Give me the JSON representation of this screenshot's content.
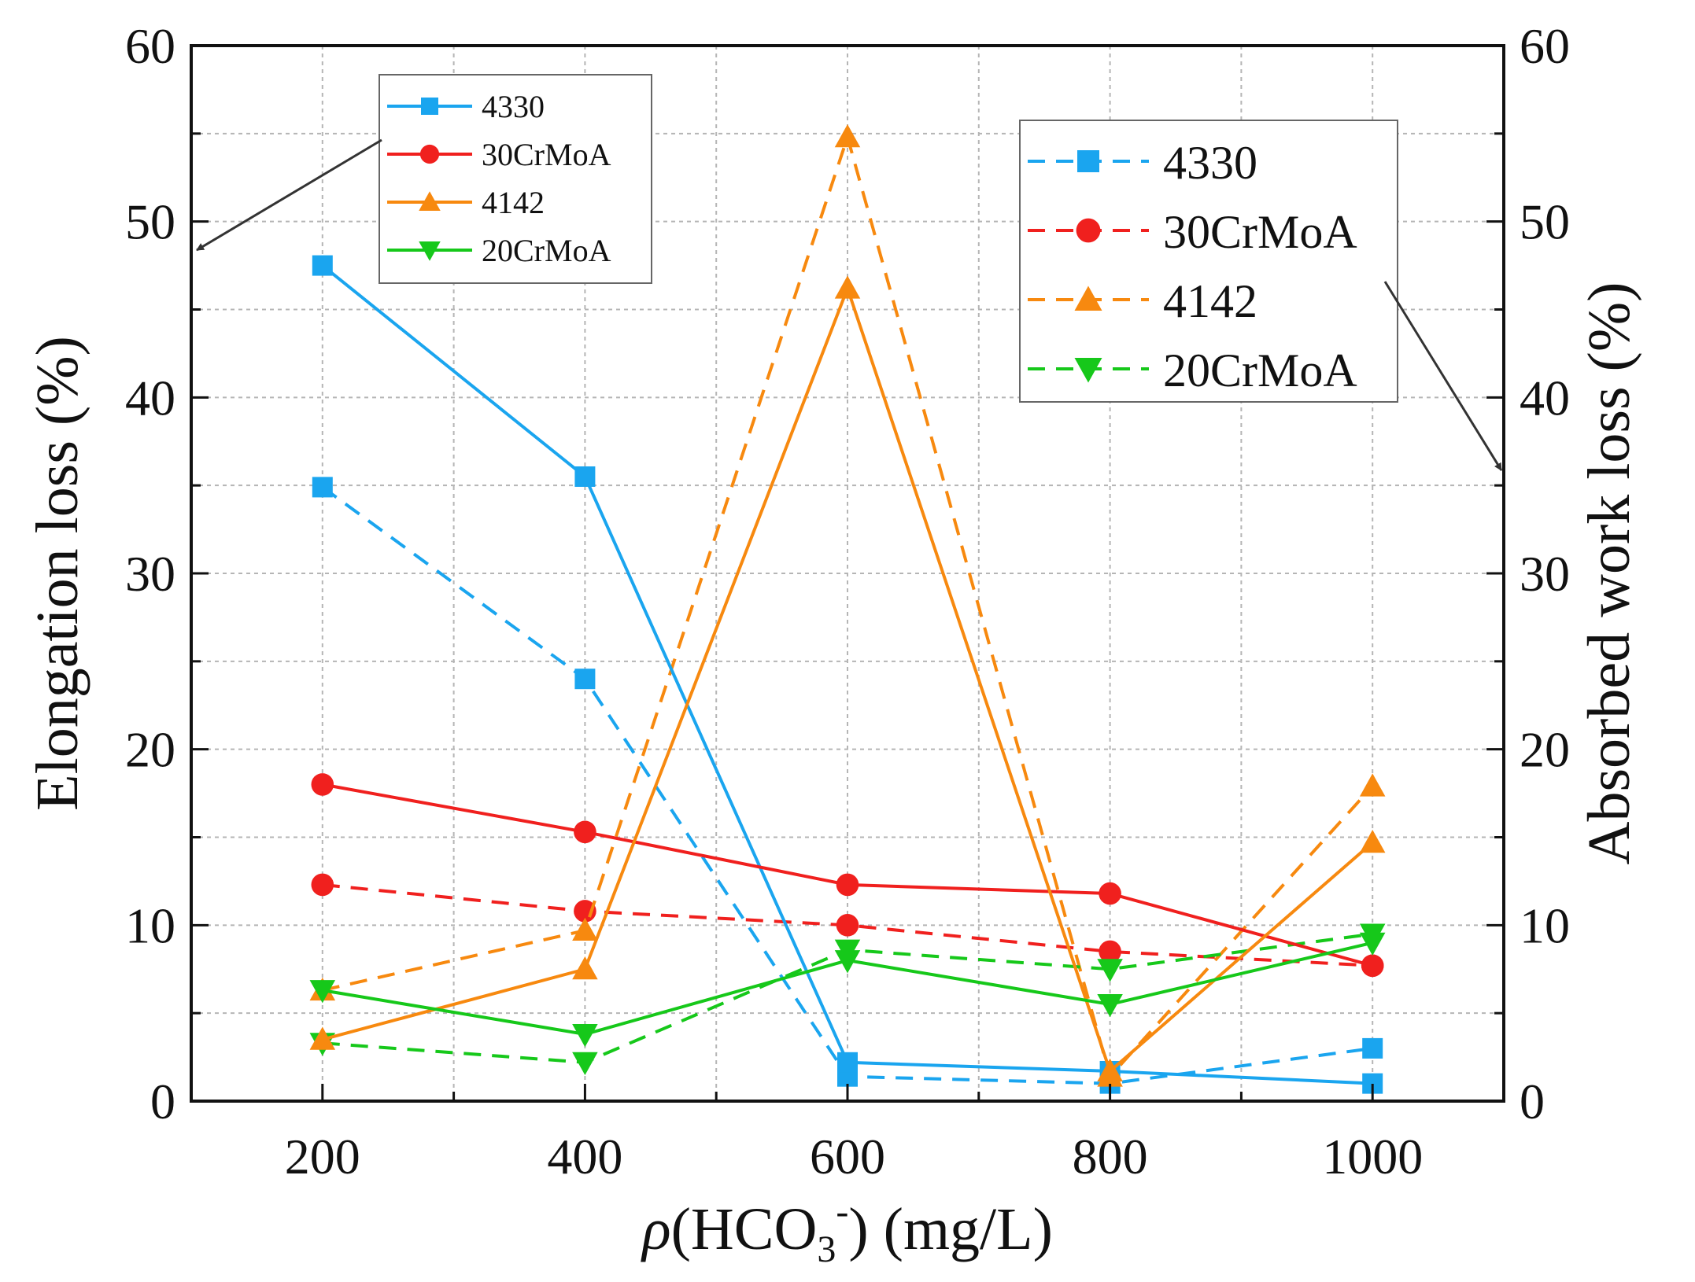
{
  "chart_data": {
    "type": "line",
    "x": [
      200,
      400,
      600,
      800,
      1000
    ],
    "xlabel_parts": {
      "rho": "ρ",
      "open": "(HCO",
      "sub": "3",
      "sup": "-",
      "close": ") (mg/L)"
    },
    "ylabel_left": "Elongation loss (%)",
    "ylabel_right": "Absorbed work loss (%)",
    "xlim": [
      100,
      1100
    ],
    "ylim": [
      0,
      60
    ],
    "x_ticks": [
      200,
      400,
      600,
      800,
      1000
    ],
    "y_ticks": [
      0,
      10,
      20,
      30,
      40,
      50,
      60
    ],
    "grid": true,
    "legend_left_placement": "top-left",
    "legend_right_placement": "top-right",
    "series": [
      {
        "name": "4330",
        "axis": "left",
        "style": "solid",
        "marker": "square",
        "color": "#1aa5ef",
        "values": [
          47.5,
          35.5,
          2.2,
          1.7,
          1.0
        ]
      },
      {
        "name": "30CrMoA",
        "axis": "left",
        "style": "solid",
        "marker": "circle",
        "color": "#f0201e",
        "values": [
          18.0,
          15.3,
          12.3,
          11.8,
          7.7
        ]
      },
      {
        "name": "4142",
        "axis": "left",
        "style": "solid",
        "marker": "triangle-up",
        "color": "#f7890f",
        "values": [
          3.5,
          7.5,
          46.2,
          1.7,
          14.7
        ]
      },
      {
        "name": "20CrMoA",
        "axis": "left",
        "style": "solid",
        "marker": "triangle-down",
        "color": "#16c81a",
        "values": [
          6.3,
          3.8,
          8.0,
          5.5,
          9.0
        ]
      },
      {
        "name": "4330",
        "axis": "right",
        "style": "dashed",
        "marker": "square",
        "color": "#1aa5ef",
        "values": [
          34.9,
          24.0,
          1.4,
          1.0,
          3.0
        ]
      },
      {
        "name": "30CrMoA",
        "axis": "right",
        "style": "dashed",
        "marker": "circle",
        "color": "#f0201e",
        "values": [
          12.3,
          10.8,
          10.0,
          8.5,
          7.7
        ]
      },
      {
        "name": "4142",
        "axis": "right",
        "style": "dashed",
        "marker": "triangle-up",
        "color": "#f7890f",
        "values": [
          6.3,
          9.7,
          54.8,
          1.4,
          17.9
        ]
      },
      {
        "name": "20CrMoA",
        "axis": "right",
        "style": "dashed",
        "marker": "triangle-down",
        "color": "#16c81a",
        "values": [
          3.3,
          2.2,
          8.6,
          7.5,
          9.5
        ]
      }
    ]
  }
}
